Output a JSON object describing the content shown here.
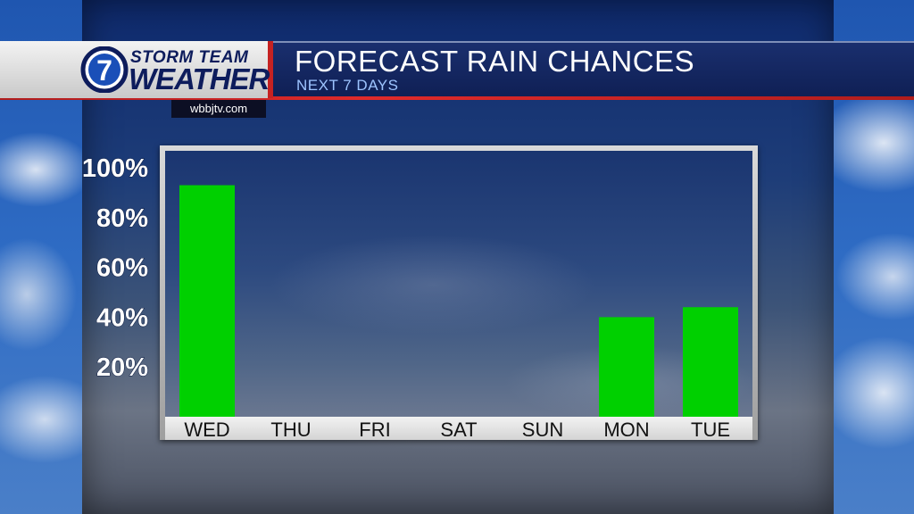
{
  "header": {
    "logo_numeral": "7",
    "logo_line1": "STORM TEAM",
    "logo_line2": "WEATHER",
    "website": "wbbjtv.com",
    "title": "FORECAST RAIN CHANCES",
    "subtitle": "NEXT 7 DAYS"
  },
  "colors": {
    "bar": "#00d000",
    "header_bg": "#0f1f54",
    "accent_red": "#d42626",
    "logo_navy": "#0d1c5c"
  },
  "chart_data": {
    "type": "bar",
    "title": "FORECAST RAIN CHANCES",
    "subtitle": "NEXT 7 DAYS",
    "categories": [
      "WED",
      "THU",
      "FRI",
      "SAT",
      "SUN",
      "MON",
      "TUE"
    ],
    "values": [
      93,
      0,
      0,
      0,
      0,
      40,
      44
    ],
    "yticks": [
      "20%",
      "40%",
      "60%",
      "80%",
      "100%"
    ],
    "ytick_values": [
      20,
      40,
      60,
      80,
      100
    ],
    "ylim": [
      0,
      100
    ],
    "unit": "%",
    "grid": false,
    "legend": "none"
  }
}
